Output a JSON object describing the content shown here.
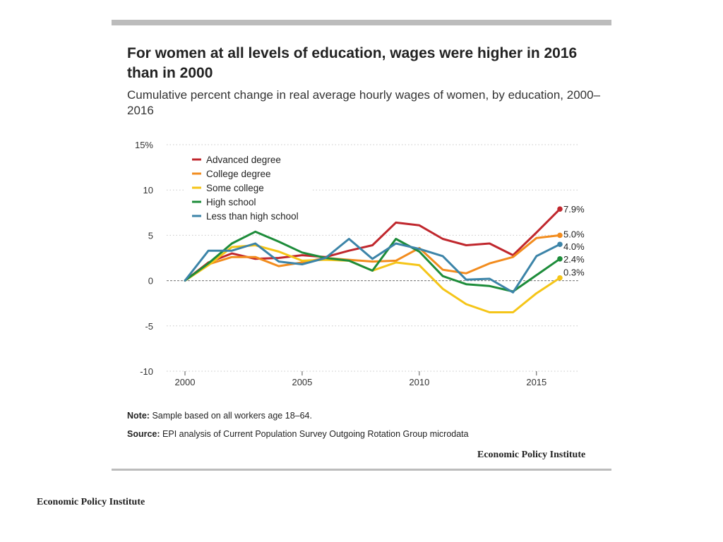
{
  "header": {
    "title": "For women at all levels of education, wages were higher in 2016 than in 2000",
    "subtitle": "Cumulative percent change in real average hourly wages of women, by education, 2000–2016"
  },
  "footer": {
    "note_label": "Note:",
    "note_text": "Sample based on all workers age 18–64.",
    "source_label": "Source:",
    "source_text": "EPI analysis of Current Population Survey Outgoing Rotation Group microdata",
    "credit": "Economic Policy Institute",
    "slide_credit": "Economic Policy Institute"
  },
  "chart_data": {
    "type": "line",
    "title": "For women at all levels of education, wages were higher in 2016 than in 2000",
    "subtitle": "Cumulative percent change in real average hourly wages of women, by education, 2000–2016",
    "xlabel": "",
    "ylabel": "",
    "x": [
      2000,
      2001,
      2002,
      2003,
      2004,
      2005,
      2006,
      2007,
      2008,
      2009,
      2010,
      2011,
      2012,
      2013,
      2014,
      2015,
      2016
    ],
    "xlim": [
      2000,
      2016
    ],
    "ylim": [
      -10,
      15
    ],
    "x_ticks": [
      2000,
      2005,
      2010,
      2015
    ],
    "y_ticks": [
      -10,
      -5,
      0,
      5,
      10,
      15
    ],
    "y_tick_labels": [
      "-10",
      "-5",
      "0",
      "5",
      "10",
      "15%"
    ],
    "grid": "horizontal-dotted",
    "legend_position": "top-left",
    "series": [
      {
        "name": "Advanced degree",
        "color": "#c0272d",
        "end_label": "7.9%",
        "values": [
          0,
          2.0,
          3.0,
          2.4,
          2.5,
          2.8,
          2.6,
          3.3,
          3.9,
          6.4,
          6.1,
          4.6,
          3.9,
          4.1,
          2.8,
          5.3,
          7.9
        ]
      },
      {
        "name": "College degree",
        "color": "#f28c1e",
        "end_label": "5.0%",
        "values": [
          0,
          1.8,
          2.6,
          2.6,
          1.6,
          2.0,
          2.5,
          2.3,
          2.1,
          2.2,
          3.6,
          1.2,
          0.8,
          1.9,
          2.6,
          4.7,
          5.0
        ]
      },
      {
        "name": "Some college",
        "color": "#f5c518",
        "end_label": "0.3%",
        "values": [
          0,
          1.7,
          3.7,
          3.9,
          3.2,
          2.2,
          2.3,
          2.2,
          1.1,
          2.0,
          1.7,
          -0.9,
          -2.6,
          -3.5,
          -3.5,
          -1.4,
          0.3
        ]
      },
      {
        "name": "High school",
        "color": "#1d8c3a",
        "end_label": "2.4%",
        "values": [
          0,
          1.9,
          4.1,
          5.4,
          4.3,
          3.1,
          2.5,
          2.2,
          1.1,
          4.6,
          3.2,
          0.5,
          -0.4,
          -0.6,
          -1.2,
          0.6,
          2.4
        ]
      },
      {
        "name": "Less than high school",
        "color": "#3c84a8",
        "end_label": "4.0%",
        "values": [
          0,
          3.3,
          3.3,
          4.1,
          2.1,
          1.8,
          2.5,
          4.6,
          2.4,
          4.1,
          3.5,
          2.7,
          0.1,
          0.2,
          -1.3,
          2.7,
          4.0
        ]
      }
    ]
  }
}
